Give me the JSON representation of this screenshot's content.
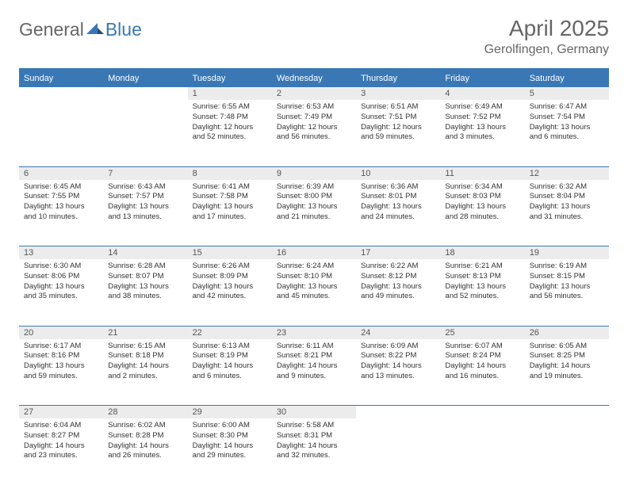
{
  "brand": {
    "general": "General",
    "blue": "Blue"
  },
  "title": "April 2025",
  "location": "Gerolfingen, Germany",
  "colors": {
    "theme": "#3a78b5",
    "daynum_bg": "#ececec",
    "background": "#ffffff",
    "text": "#333333",
    "muted": "#666666"
  },
  "day_headers": [
    "Sunday",
    "Monday",
    "Tuesday",
    "Wednesday",
    "Thursday",
    "Friday",
    "Saturday"
  ],
  "weeks": [
    [
      null,
      null,
      {
        "n": "1",
        "sr": "6:55 AM",
        "ss": "7:48 PM",
        "dl": "12 hours and 52 minutes."
      },
      {
        "n": "2",
        "sr": "6:53 AM",
        "ss": "7:49 PM",
        "dl": "12 hours and 56 minutes."
      },
      {
        "n": "3",
        "sr": "6:51 AM",
        "ss": "7:51 PM",
        "dl": "12 hours and 59 minutes."
      },
      {
        "n": "4",
        "sr": "6:49 AM",
        "ss": "7:52 PM",
        "dl": "13 hours and 3 minutes."
      },
      {
        "n": "5",
        "sr": "6:47 AM",
        "ss": "7:54 PM",
        "dl": "13 hours and 6 minutes."
      }
    ],
    [
      {
        "n": "6",
        "sr": "6:45 AM",
        "ss": "7:55 PM",
        "dl": "13 hours and 10 minutes."
      },
      {
        "n": "7",
        "sr": "6:43 AM",
        "ss": "7:57 PM",
        "dl": "13 hours and 13 minutes."
      },
      {
        "n": "8",
        "sr": "6:41 AM",
        "ss": "7:58 PM",
        "dl": "13 hours and 17 minutes."
      },
      {
        "n": "9",
        "sr": "6:39 AM",
        "ss": "8:00 PM",
        "dl": "13 hours and 21 minutes."
      },
      {
        "n": "10",
        "sr": "6:36 AM",
        "ss": "8:01 PM",
        "dl": "13 hours and 24 minutes."
      },
      {
        "n": "11",
        "sr": "6:34 AM",
        "ss": "8:03 PM",
        "dl": "13 hours and 28 minutes."
      },
      {
        "n": "12",
        "sr": "6:32 AM",
        "ss": "8:04 PM",
        "dl": "13 hours and 31 minutes."
      }
    ],
    [
      {
        "n": "13",
        "sr": "6:30 AM",
        "ss": "8:06 PM",
        "dl": "13 hours and 35 minutes."
      },
      {
        "n": "14",
        "sr": "6:28 AM",
        "ss": "8:07 PM",
        "dl": "13 hours and 38 minutes."
      },
      {
        "n": "15",
        "sr": "6:26 AM",
        "ss": "8:09 PM",
        "dl": "13 hours and 42 minutes."
      },
      {
        "n": "16",
        "sr": "6:24 AM",
        "ss": "8:10 PM",
        "dl": "13 hours and 45 minutes."
      },
      {
        "n": "17",
        "sr": "6:22 AM",
        "ss": "8:12 PM",
        "dl": "13 hours and 49 minutes."
      },
      {
        "n": "18",
        "sr": "6:21 AM",
        "ss": "8:13 PM",
        "dl": "13 hours and 52 minutes."
      },
      {
        "n": "19",
        "sr": "6:19 AM",
        "ss": "8:15 PM",
        "dl": "13 hours and 56 minutes."
      }
    ],
    [
      {
        "n": "20",
        "sr": "6:17 AM",
        "ss": "8:16 PM",
        "dl": "13 hours and 59 minutes."
      },
      {
        "n": "21",
        "sr": "6:15 AM",
        "ss": "8:18 PM",
        "dl": "14 hours and 2 minutes."
      },
      {
        "n": "22",
        "sr": "6:13 AM",
        "ss": "8:19 PM",
        "dl": "14 hours and 6 minutes."
      },
      {
        "n": "23",
        "sr": "6:11 AM",
        "ss": "8:21 PM",
        "dl": "14 hours and 9 minutes."
      },
      {
        "n": "24",
        "sr": "6:09 AM",
        "ss": "8:22 PM",
        "dl": "14 hours and 13 minutes."
      },
      {
        "n": "25",
        "sr": "6:07 AM",
        "ss": "8:24 PM",
        "dl": "14 hours and 16 minutes."
      },
      {
        "n": "26",
        "sr": "6:05 AM",
        "ss": "8:25 PM",
        "dl": "14 hours and 19 minutes."
      }
    ],
    [
      {
        "n": "27",
        "sr": "6:04 AM",
        "ss": "8:27 PM",
        "dl": "14 hours and 23 minutes."
      },
      {
        "n": "28",
        "sr": "6:02 AM",
        "ss": "8:28 PM",
        "dl": "14 hours and 26 minutes."
      },
      {
        "n": "29",
        "sr": "6:00 AM",
        "ss": "8:30 PM",
        "dl": "14 hours and 29 minutes."
      },
      {
        "n": "30",
        "sr": "5:58 AM",
        "ss": "8:31 PM",
        "dl": "14 hours and 32 minutes."
      },
      null,
      null,
      null
    ]
  ],
  "labels": {
    "sunrise": "Sunrise:",
    "sunset": "Sunset:",
    "daylight": "Daylight:"
  }
}
